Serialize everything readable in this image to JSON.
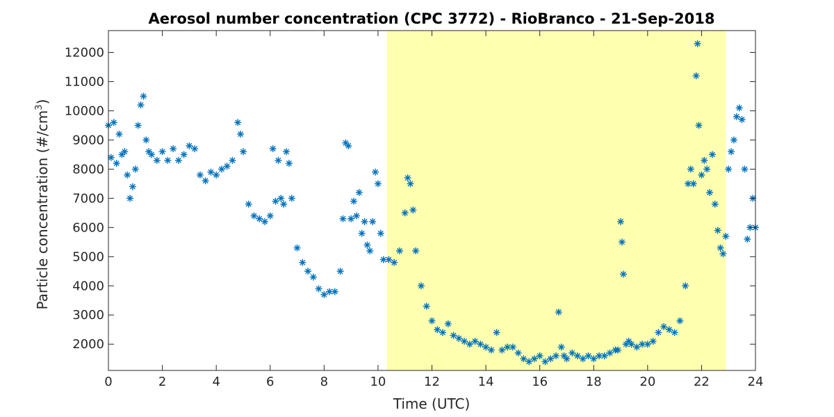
{
  "chart_data": {
    "type": "scatter",
    "title": "Aerosol number concentration (CPC 3772) - RioBranco - 21-Sep-2018",
    "xlabel": "Time (UTC)",
    "ylabel_main": "Particle concentration (#/cm",
    "ylabel_sup": "3",
    "ylabel_tail": ")",
    "xlim": [
      0,
      24
    ],
    "ylim": [
      1100,
      12750
    ],
    "xticks": [
      0,
      2,
      4,
      6,
      8,
      10,
      12,
      14,
      16,
      18,
      20,
      22,
      24
    ],
    "xtick_labels": [
      "0",
      "2",
      "4",
      "6",
      "8",
      "10",
      "12",
      "14",
      "16",
      "18",
      "20",
      "22",
      "24"
    ],
    "yticks": [
      2000,
      3000,
      4000,
      5000,
      6000,
      7000,
      8000,
      9000,
      10000,
      11000,
      12000
    ],
    "ytick_labels": [
      "2000",
      "3000",
      "4000",
      "5000",
      "6000",
      "7000",
      "8000",
      "9000",
      "10000",
      "11000",
      "12000"
    ],
    "grid": false,
    "legend": "none",
    "marker": "asterisk",
    "colors": {
      "series": "#0072BD",
      "shade": "#FFFFB0",
      "axis": "#262626"
    },
    "shaded_region": {
      "x0": 10.33,
      "x1": 22.9
    },
    "series": [
      {
        "x": [
          0.0,
          0.1,
          0.2,
          0.3,
          0.4,
          0.5,
          0.6,
          0.7,
          0.8,
          0.9,
          1.0,
          1.1,
          1.2,
          1.3,
          1.4,
          1.5,
          1.6,
          1.8,
          2.0,
          2.2,
          2.4,
          2.6,
          2.8,
          3.0,
          3.2,
          3.4,
          3.6,
          3.8,
          4.0,
          4.2,
          4.4,
          4.6,
          4.8,
          4.9,
          5.0,
          5.2,
          5.4,
          5.6,
          5.8,
          6.0,
          6.1,
          6.2,
          6.3,
          6.4,
          6.5,
          6.6,
          6.7,
          6.8,
          7.0,
          7.2,
          7.4,
          7.6,
          7.8,
          8.0,
          8.2,
          8.4,
          8.6,
          8.7,
          8.8,
          8.9,
          9.0,
          9.1,
          9.2,
          9.3,
          9.4,
          9.5,
          9.6,
          9.7,
          9.8,
          9.9,
          10.0,
          10.1,
          10.2,
          10.4,
          10.6,
          10.8,
          11.0,
          11.1,
          11.2,
          11.3,
          11.4,
          11.6,
          11.8,
          12.0,
          12.2,
          12.4,
          12.6,
          12.8,
          13.0,
          13.2,
          13.4,
          13.6,
          13.8,
          14.0,
          14.2,
          14.4,
          14.6,
          14.8,
          15.0,
          15.2,
          15.4,
          15.6,
          15.8,
          16.0,
          16.2,
          16.4,
          16.6,
          16.7,
          16.8,
          16.9,
          17.0,
          17.2,
          17.4,
          17.6,
          17.8,
          18.0,
          18.2,
          18.4,
          18.6,
          18.8,
          18.9,
          19.0,
          19.05,
          19.1,
          19.2,
          19.3,
          19.4,
          19.6,
          19.8,
          20.0,
          20.2,
          20.4,
          20.6,
          20.8,
          21.0,
          21.2,
          21.4,
          21.5,
          21.6,
          21.7,
          21.8,
          21.85,
          21.9,
          22.0,
          22.1,
          22.2,
          22.3,
          22.4,
          22.5,
          22.6,
          22.7,
          22.8,
          22.9,
          23.0,
          23.1,
          23.2,
          23.3,
          23.4,
          23.5,
          23.6,
          23.7,
          23.8,
          23.9,
          24.0
        ],
        "y": [
          9500,
          8400,
          9600,
          8200,
          9200,
          8500,
          8600,
          7800,
          7000,
          7400,
          8000,
          9500,
          10200,
          10500,
          9000,
          8600,
          8500,
          8300,
          8600,
          8300,
          8700,
          8300,
          8500,
          8800,
          8700,
          7800,
          7600,
          7900,
          7800,
          8000,
          8100,
          8300,
          9600,
          9200,
          8600,
          6800,
          6400,
          6300,
          6200,
          6400,
          8700,
          6900,
          8300,
          7000,
          6800,
          8600,
          8200,
          7000,
          5300,
          4800,
          4500,
          4300,
          3900,
          3700,
          3800,
          3800,
          4500,
          6300,
          8900,
          8800,
          6300,
          6900,
          6400,
          7200,
          5800,
          6200,
          5400,
          5200,
          6200,
          7900,
          7500,
          5800,
          4900,
          4900,
          4800,
          5200,
          6500,
          7700,
          7500,
          6600,
          5200,
          4000,
          3300,
          2800,
          2500,
          2400,
          2700,
          2300,
          2200,
          2100,
          2000,
          2100,
          2000,
          1900,
          1800,
          2400,
          1800,
          1900,
          1900,
          1700,
          1500,
          1400,
          1500,
          1600,
          1400,
          1500,
          1600,
          3100,
          1900,
          1600,
          1500,
          1700,
          1600,
          1500,
          1600,
          1500,
          1600,
          1600,
          1700,
          1800,
          1800,
          6200,
          5500,
          4400,
          2000,
          2100,
          2000,
          1900,
          2000,
          2000,
          2100,
          2400,
          2600,
          2500,
          2400,
          2800,
          4000,
          7500,
          8000,
          7500,
          11200,
          12300,
          9500,
          7800,
          8300,
          8000,
          7200,
          8500,
          6800,
          5900,
          5300,
          5100,
          5700,
          8000,
          8600,
          9000,
          9800,
          10100,
          9700,
          8000,
          5600,
          6000,
          7000,
          6000
        ]
      }
    ]
  }
}
